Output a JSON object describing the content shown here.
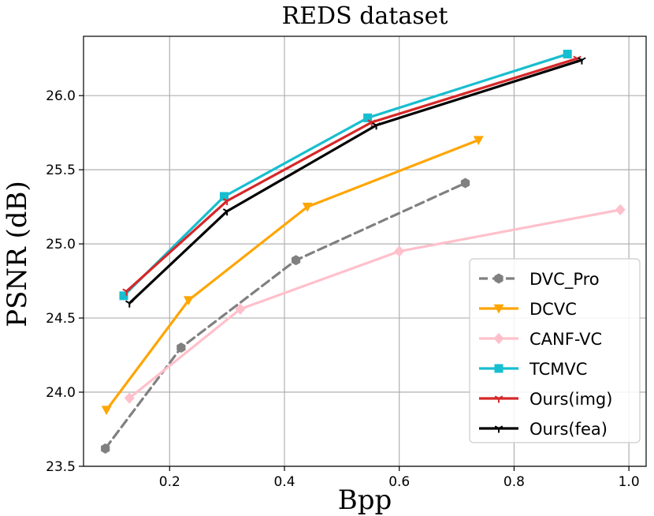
{
  "chart_data": {
    "type": "line",
    "title": "REDS dataset",
    "xlabel": "Bpp",
    "ylabel": "PSNR (dB)",
    "xlim": [
      0.05,
      1.03
    ],
    "ylim": [
      23.5,
      26.4
    ],
    "xticks": [
      0.2,
      0.4,
      0.6,
      0.8,
      1.0
    ],
    "xtick_labels": [
      "0.2",
      "0.4",
      "0.6",
      "0.8",
      "1.0"
    ],
    "yticks": [
      23.5,
      24.0,
      24.5,
      25.0,
      25.5,
      26.0
    ],
    "ytick_labels": [
      "23.5",
      "24.0",
      "24.5",
      "25.0",
      "25.5",
      "26.0"
    ],
    "grid": true,
    "legend_position": "bottom-right",
    "series": [
      {
        "name": "DVC_Pro",
        "color": "#808080",
        "dashed": true,
        "marker": "hexagon",
        "x": [
          0.088,
          0.22,
          0.42,
          0.715
        ],
        "y": [
          23.62,
          24.3,
          24.89,
          25.41
        ]
      },
      {
        "name": "DCVC",
        "color": "#FFA500",
        "dashed": false,
        "marker": "triangle-down",
        "x": [
          0.09,
          0.233,
          0.44,
          0.738
        ],
        "y": [
          23.88,
          24.62,
          25.25,
          25.7
        ]
      },
      {
        "name": "CANF-VC",
        "color": "#FFC0CB",
        "dashed": false,
        "marker": "diamond",
        "x": [
          0.13,
          0.323,
          0.6,
          0.985
        ],
        "y": [
          23.96,
          24.56,
          24.95,
          25.23
        ]
      },
      {
        "name": "TCMVC",
        "color": "#17BECF",
        "dashed": false,
        "marker": "square",
        "x": [
          0.12,
          0.295,
          0.545,
          0.893
        ],
        "y": [
          24.65,
          25.32,
          25.85,
          26.28
        ]
      },
      {
        "name": "Ours(img)",
        "color": "#D62728",
        "dashed": false,
        "marker": "tri-down",
        "x": [
          0.125,
          0.3,
          0.552,
          0.91
        ],
        "y": [
          24.68,
          25.29,
          25.82,
          26.25
        ]
      },
      {
        "name": "Ours(fea)",
        "color": "#000000",
        "dashed": false,
        "marker": "tri-down",
        "x": [
          0.13,
          0.3,
          0.56,
          0.918
        ],
        "y": [
          24.6,
          25.22,
          25.8,
          26.24
        ]
      }
    ]
  }
}
